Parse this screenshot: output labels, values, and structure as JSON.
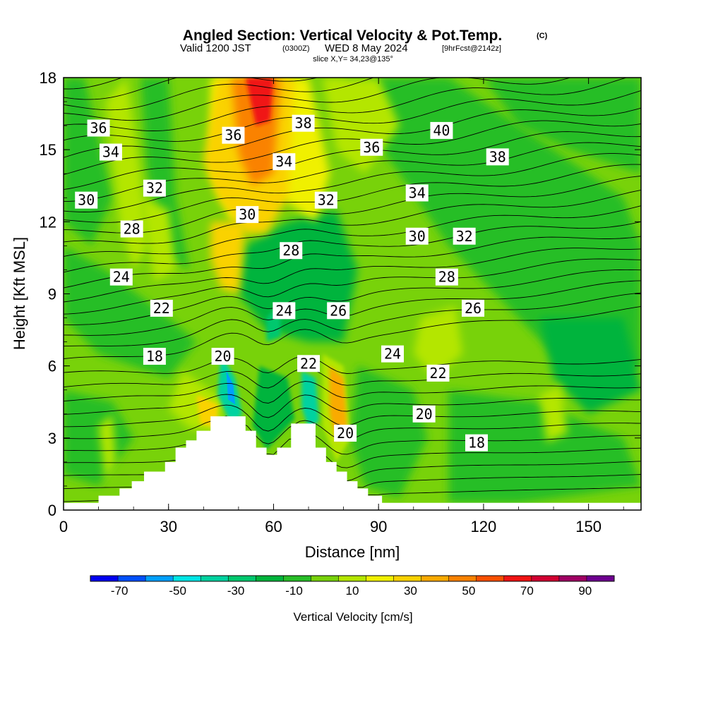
{
  "title": {
    "main": "Angled Section: Vertical Velocity & Pot.Temp.",
    "copyright": "(C)",
    "valid_prefix": "Valid 1200 JST",
    "valid_utc": "(0300Z)",
    "valid_date": "WED 8 May 2024",
    "forecast": "[9hrFcst@2142z]",
    "slice": "slice X,Y= 34,23@135°"
  },
  "chart_data": {
    "type": "heatmap",
    "xlabel": "Distance [nm]",
    "ylabel": "Height [Kft MSL]",
    "xlim": [
      0,
      165
    ],
    "ylim": [
      0,
      18
    ],
    "x_ticks": [
      0,
      30,
      60,
      90,
      120,
      150
    ],
    "y_ticks": [
      0,
      3,
      6,
      9,
      12,
      15,
      18
    ],
    "colorbar": {
      "label": "Vertical Velocity [cm/s]",
      "tick_labels": [
        "-70",
        "-50",
        "-30",
        "-10",
        "10",
        "30",
        "50",
        "70",
        "90"
      ],
      "levels": [
        -80,
        -70,
        -60,
        -50,
        -40,
        -30,
        -20,
        -10,
        0,
        10,
        20,
        30,
        40,
        50,
        60,
        70,
        80,
        90,
        100
      ],
      "colors": [
        "#0000f0",
        "#0050ff",
        "#00a0ff",
        "#00e6e6",
        "#00d2a0",
        "#00c86e",
        "#00b43c",
        "#28be28",
        "#78d20a",
        "#b4e600",
        "#f0f000",
        "#fad200",
        "#faaa00",
        "#fa8200",
        "#fa5000",
        "#f01414",
        "#d20032",
        "#a00064",
        "#6e0090"
      ]
    },
    "theta_contour_labels": [
      {
        "value": "36",
        "x": 10,
        "y": 15.9
      },
      {
        "value": "34",
        "x": 13.5,
        "y": 14.9
      },
      {
        "value": "30",
        "x": 6.5,
        "y": 12.9
      },
      {
        "value": "32",
        "x": 26,
        "y": 13.4
      },
      {
        "value": "28",
        "x": 19.5,
        "y": 11.7
      },
      {
        "value": "24",
        "x": 16.5,
        "y": 9.7
      },
      {
        "value": "22",
        "x": 28,
        "y": 8.4
      },
      {
        "value": "18",
        "x": 26,
        "y": 6.4
      },
      {
        "value": "36",
        "x": 48.5,
        "y": 15.6
      },
      {
        "value": "38",
        "x": 68.5,
        "y": 16.1
      },
      {
        "value": "34",
        "x": 63,
        "y": 14.5
      },
      {
        "value": "30",
        "x": 52.5,
        "y": 12.3
      },
      {
        "value": "28",
        "x": 65,
        "y": 10.8
      },
      {
        "value": "32",
        "x": 75,
        "y": 12.9
      },
      {
        "value": "24",
        "x": 63,
        "y": 8.3
      },
      {
        "value": "26",
        "x": 78.5,
        "y": 8.3
      },
      {
        "value": "20",
        "x": 45.5,
        "y": 6.4
      },
      {
        "value": "22",
        "x": 70,
        "y": 6.1
      },
      {
        "value": "20",
        "x": 80.5,
        "y": 3.2
      },
      {
        "value": "36",
        "x": 88,
        "y": 15.1
      },
      {
        "value": "40",
        "x": 108,
        "y": 15.8
      },
      {
        "value": "38",
        "x": 124,
        "y": 14.7
      },
      {
        "value": "34",
        "x": 101,
        "y": 13.2
      },
      {
        "value": "30",
        "x": 101,
        "y": 11.4
      },
      {
        "value": "32",
        "x": 114.5,
        "y": 11.4
      },
      {
        "value": "28",
        "x": 109.5,
        "y": 9.7
      },
      {
        "value": "26",
        "x": 117,
        "y": 8.4
      },
      {
        "value": "24",
        "x": 94,
        "y": 6.5
      },
      {
        "value": "22",
        "x": 107,
        "y": 5.7
      },
      {
        "value": "20",
        "x": 103,
        "y": 4.0
      },
      {
        "value": "18",
        "x": 118,
        "y": 2.8
      }
    ],
    "terrain_profile": [
      [
        0,
        0.3
      ],
      [
        10,
        0.3
      ],
      [
        10,
        0.6
      ],
      [
        16,
        0.6
      ],
      [
        16,
        0.9
      ],
      [
        19.5,
        0.9
      ],
      [
        19.5,
        1.2
      ],
      [
        23,
        1.2
      ],
      [
        23,
        1.6
      ],
      [
        29,
        1.6
      ],
      [
        29,
        2.0
      ],
      [
        32,
        2.0
      ],
      [
        32,
        2.6
      ],
      [
        35,
        2.6
      ],
      [
        35,
        2.9
      ],
      [
        38,
        2.9
      ],
      [
        38,
        3.3
      ],
      [
        42,
        3.3
      ],
      [
        42,
        3.9
      ],
      [
        52,
        3.9
      ],
      [
        52,
        3.3
      ],
      [
        55,
        3.3
      ],
      [
        55,
        2.6
      ],
      [
        58,
        2.6
      ],
      [
        58,
        2.3
      ],
      [
        61,
        2.3
      ],
      [
        61,
        2.6
      ],
      [
        65,
        2.6
      ],
      [
        65,
        3.6
      ],
      [
        72,
        3.6
      ],
      [
        72,
        2.6
      ],
      [
        75,
        2.6
      ],
      [
        75,
        2.0
      ],
      [
        78,
        2.0
      ],
      [
        78,
        1.6
      ],
      [
        81,
        1.6
      ],
      [
        81,
        1.2
      ],
      [
        84,
        1.2
      ],
      [
        84,
        0.9
      ],
      [
        87,
        0.9
      ],
      [
        87,
        0.6
      ],
      [
        91,
        0.6
      ],
      [
        91,
        0.3
      ],
      [
        165,
        0.3
      ]
    ],
    "velocity_features": [
      {
        "label": "updraft-top",
        "x": 57,
        "y": 17.5,
        "value": 75
      },
      {
        "label": "updraft-column",
        "x": 54,
        "y": 13.5,
        "value": 45
      },
      {
        "label": "downslope-left",
        "x": 48,
        "y": 4.8,
        "value": -45
      },
      {
        "label": "downslope-right",
        "x": 71,
        "y": 4.6,
        "value": -40
      },
      {
        "label": "lee-updraft",
        "x": 78,
        "y": 4.2,
        "value": 40
      }
    ]
  }
}
